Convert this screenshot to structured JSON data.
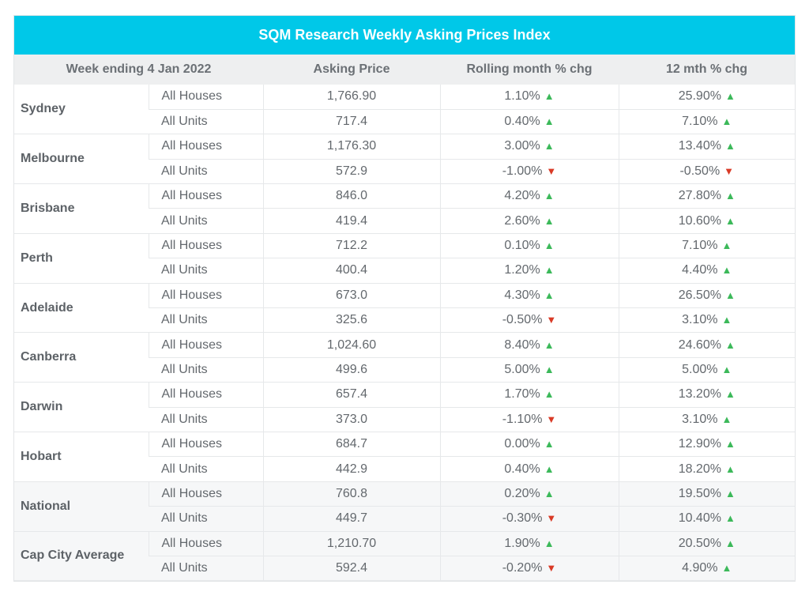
{
  "title": "SQM Research Weekly Asking Prices Index",
  "headers": {
    "week": "Week ending 4 Jan 2022",
    "price": "Asking Price",
    "rolling": "Rolling month % chg",
    "year": "12 mth % chg"
  },
  "colors": {
    "accent": "#00c8e8",
    "up": "#3cb95a",
    "down": "#d93a26"
  },
  "icons": {
    "up": "triangle-up-icon",
    "down": "triangle-down-icon"
  },
  "rows": [
    {
      "city": "Sydney",
      "items": [
        {
          "type": "All Houses",
          "price": "1,766.90",
          "rolling": "1.10%",
          "rolling_dir": "up",
          "year": "25.90%",
          "year_dir": "up"
        },
        {
          "type": "All Units",
          "price": "717.4",
          "rolling": "0.40%",
          "rolling_dir": "up",
          "year": "7.10%",
          "year_dir": "up"
        }
      ]
    },
    {
      "city": "Melbourne",
      "items": [
        {
          "type": "All Houses",
          "price": "1,176.30",
          "rolling": "3.00%",
          "rolling_dir": "up",
          "year": "13.40%",
          "year_dir": "up"
        },
        {
          "type": "All Units",
          "price": "572.9",
          "rolling": "-1.00%",
          "rolling_dir": "down",
          "year": "-0.50%",
          "year_dir": "down"
        }
      ]
    },
    {
      "city": "Brisbane",
      "items": [
        {
          "type": "All Houses",
          "price": "846.0",
          "rolling": "4.20%",
          "rolling_dir": "up",
          "year": "27.80%",
          "year_dir": "up"
        },
        {
          "type": "All Units",
          "price": "419.4",
          "rolling": "2.60%",
          "rolling_dir": "up",
          "year": "10.60%",
          "year_dir": "up"
        }
      ]
    },
    {
      "city": "Perth",
      "items": [
        {
          "type": "All Houses",
          "price": "712.2",
          "rolling": "0.10%",
          "rolling_dir": "up",
          "year": "7.10%",
          "year_dir": "up"
        },
        {
          "type": "All Units",
          "price": "400.4",
          "rolling": "1.20%",
          "rolling_dir": "up",
          "year": "4.40%",
          "year_dir": "up"
        }
      ]
    },
    {
      "city": "Adelaide",
      "items": [
        {
          "type": "All Houses",
          "price": "673.0",
          "rolling": "4.30%",
          "rolling_dir": "up",
          "year": "26.50%",
          "year_dir": "up"
        },
        {
          "type": "All Units",
          "price": "325.6",
          "rolling": "-0.50%",
          "rolling_dir": "down",
          "year": "3.10%",
          "year_dir": "up"
        }
      ]
    },
    {
      "city": "Canberra",
      "items": [
        {
          "type": "All Houses",
          "price": "1,024.60",
          "rolling": "8.40%",
          "rolling_dir": "up",
          "year": "24.60%",
          "year_dir": "up"
        },
        {
          "type": "All Units",
          "price": "499.6",
          "rolling": "5.00%",
          "rolling_dir": "up",
          "year": "5.00%",
          "year_dir": "up"
        }
      ]
    },
    {
      "city": "Darwin",
      "items": [
        {
          "type": "All Houses",
          "price": "657.4",
          "rolling": "1.70%",
          "rolling_dir": "up",
          "year": "13.20%",
          "year_dir": "up"
        },
        {
          "type": "All Units",
          "price": "373.0",
          "rolling": "-1.10%",
          "rolling_dir": "down",
          "year": "3.10%",
          "year_dir": "up"
        }
      ]
    },
    {
      "city": "Hobart",
      "items": [
        {
          "type": "All Houses",
          "price": "684.7",
          "rolling": "0.00%",
          "rolling_dir": "up",
          "year": "12.90%",
          "year_dir": "up"
        },
        {
          "type": "All Units",
          "price": "442.9",
          "rolling": "0.40%",
          "rolling_dir": "up",
          "year": "18.20%",
          "year_dir": "up"
        }
      ]
    },
    {
      "city": "National",
      "summary": true,
      "items": [
        {
          "type": "All Houses",
          "price": "760.8",
          "rolling": "0.20%",
          "rolling_dir": "up",
          "year": "19.50%",
          "year_dir": "up"
        },
        {
          "type": "All Units",
          "price": "449.7",
          "rolling": "-0.30%",
          "rolling_dir": "down",
          "year": "10.40%",
          "year_dir": "up"
        }
      ]
    },
    {
      "city": "Cap City Average",
      "summary": true,
      "items": [
        {
          "type": "All Houses",
          "price": "1,210.70",
          "rolling": "1.90%",
          "rolling_dir": "up",
          "year": "20.50%",
          "year_dir": "up"
        },
        {
          "type": "All Units",
          "price": "592.4",
          "rolling": "-0.20%",
          "rolling_dir": "down",
          "year": "4.90%",
          "year_dir": "up"
        }
      ]
    }
  ]
}
